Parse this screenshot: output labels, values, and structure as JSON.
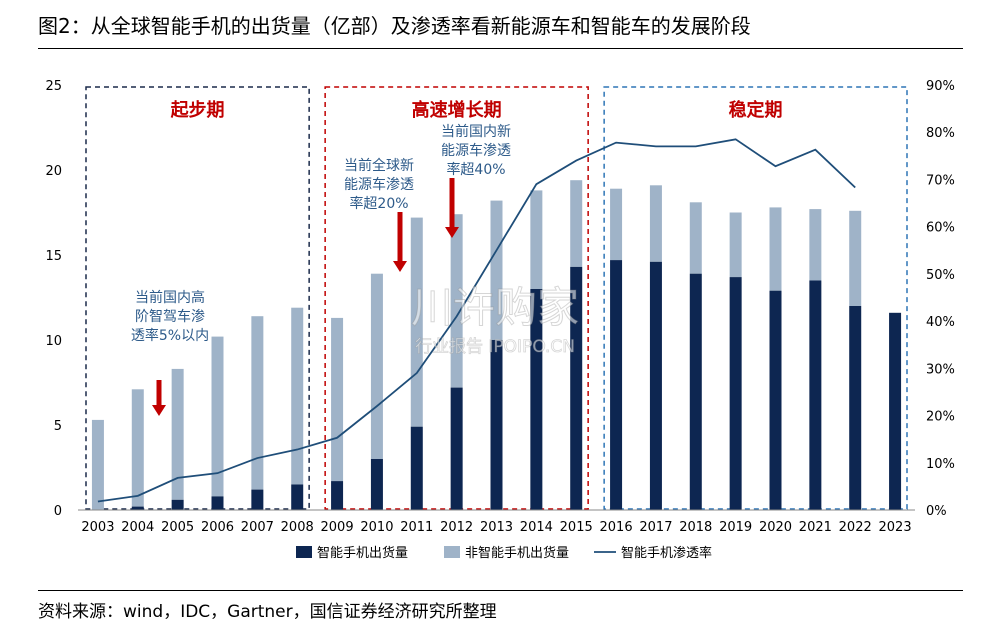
{
  "title": "图2：从全球智能手机的出货量（亿部）及渗透率看新能源车和智能车的发展阶段",
  "source": "资料来源：wind，IDC，Gartner，国信证券经济研究所整理",
  "colors": {
    "smart": "#0d2651",
    "nonsmart": "#9fb3c8",
    "line": "#1f4e79",
    "arrow": "#c00000",
    "annotation": "#2e5b8a",
    "phase_title": "#c00000",
    "phase1_border": "#1a2a4a",
    "phase2_border": "#c00000",
    "phase3_border": "#2e75b6"
  },
  "phases": [
    {
      "label": "起步期",
      "from": "2003",
      "to": "2008"
    },
    {
      "label": "高速增长期",
      "from": "2009",
      "to": "2015"
    },
    {
      "label": "稳定期",
      "from": "2016",
      "to": "2023"
    }
  ],
  "annotations": [
    {
      "lines": [
        "当前国内高",
        "阶智驾车渗",
        "透率5%以内"
      ],
      "arrow_at": "2004"
    },
    {
      "lines": [
        "当前全球新",
        "能源车渗透",
        "率超20%"
      ],
      "arrow_at": "2010"
    },
    {
      "lines": [
        "当前国内新",
        "能源车渗透",
        "率超40%"
      ],
      "arrow_at": "2011"
    }
  ],
  "watermark": {
    "main": "川许购家",
    "sub": "行业报告 IPOIPO.CN"
  },
  "chart_data": {
    "type": "bar",
    "stacked": true,
    "categories": [
      "2003",
      "2004",
      "2005",
      "2006",
      "2007",
      "2008",
      "2009",
      "2010",
      "2011",
      "2012",
      "2013",
      "2014",
      "2015",
      "2016",
      "2017",
      "2018",
      "2019",
      "2020",
      "2021",
      "2022",
      "2023"
    ],
    "series": [
      {
        "name": "智能手机出货量",
        "type": "bar",
        "axis": "left",
        "values": [
          0.0,
          0.2,
          0.6,
          0.8,
          1.2,
          1.5,
          1.7,
          3.0,
          4.9,
          7.2,
          10.0,
          13.0,
          14.3,
          14.7,
          14.6,
          13.9,
          13.7,
          12.9,
          13.5,
          12.0,
          11.6
        ]
      },
      {
        "name": "非智能手机出货量",
        "type": "bar",
        "axis": "left",
        "values": [
          5.3,
          6.9,
          7.7,
          9.4,
          10.2,
          10.4,
          9.6,
          10.9,
          12.3,
          10.2,
          8.2,
          5.8,
          5.1,
          4.2,
          4.5,
          4.2,
          3.8,
          4.9,
          4.2,
          5.6,
          0.0
        ]
      },
      {
        "name": "智能手机渗透率",
        "type": "line",
        "axis": "right",
        "values": [
          1.8,
          3.0,
          6.8,
          7.8,
          11.0,
          12.8,
          15.3,
          22.0,
          29.0,
          41.0,
          55.0,
          69.0,
          74.0,
          77.8,
          77.0,
          77.0,
          78.5,
          72.8,
          76.3,
          68.3,
          null
        ]
      }
    ],
    "y_left": {
      "min": 0,
      "max": 25,
      "ticks": [
        "0",
        "5",
        "10",
        "15",
        "20",
        "25"
      ]
    },
    "y_right": {
      "min": 0,
      "max": 90,
      "ticks": [
        "0%",
        "10%",
        "20%",
        "30%",
        "40%",
        "50%",
        "60%",
        "70%",
        "80%",
        "90%"
      ]
    },
    "legend": {
      "position": "bottom"
    },
    "grid": false
  }
}
